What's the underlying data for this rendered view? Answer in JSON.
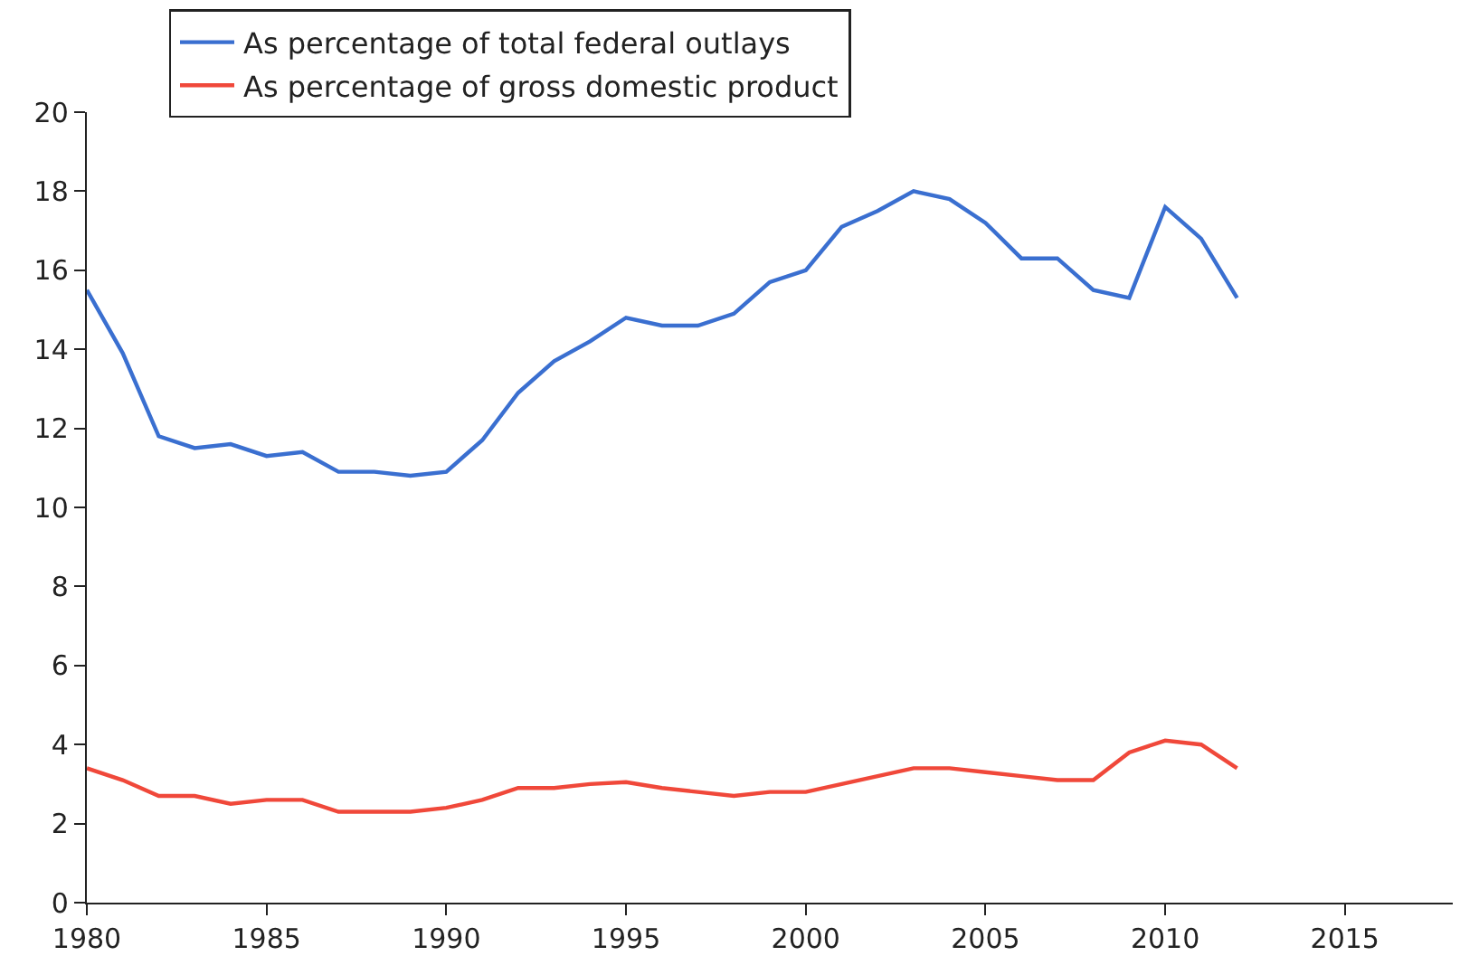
{
  "chart_data": {
    "type": "line",
    "x": [
      1980,
      1981,
      1982,
      1983,
      1984,
      1985,
      1986,
      1987,
      1988,
      1989,
      1990,
      1991,
      1992,
      1993,
      1994,
      1995,
      1996,
      1997,
      1998,
      1999,
      2000,
      2001,
      2002,
      2003,
      2004,
      2005,
      2006,
      2007,
      2008,
      2009,
      2010,
      2011,
      2012
    ],
    "series": [
      {
        "name": "As percentage of total federal outlays",
        "color": "#3a6fd0",
        "values": [
          15.5,
          13.9,
          11.8,
          11.5,
          11.6,
          11.3,
          11.4,
          10.9,
          10.9,
          10.8,
          10.9,
          11.7,
          12.9,
          13.7,
          14.2,
          14.8,
          14.6,
          14.6,
          14.9,
          15.7,
          16.0,
          17.1,
          17.5,
          18.0,
          17.8,
          17.2,
          16.3,
          16.3,
          15.5,
          15.3,
          17.6,
          16.8,
          15.3
        ]
      },
      {
        "name": "As percentage of gross domestic product",
        "color": "#f0483a",
        "values": [
          3.4,
          3.1,
          2.7,
          2.7,
          2.5,
          2.6,
          2.6,
          2.3,
          2.3,
          2.3,
          2.4,
          2.6,
          2.9,
          2.9,
          3.0,
          3.05,
          2.9,
          2.8,
          2.7,
          2.8,
          2.8,
          3.0,
          3.2,
          3.4,
          3.4,
          3.3,
          3.2,
          3.1,
          3.1,
          3.8,
          4.1,
          4.0,
          3.4
        ]
      }
    ],
    "xlim": [
      1980,
      2018
    ],
    "xticks": [
      1980,
      1985,
      1990,
      1995,
      2000,
      2005,
      2010,
      2015
    ],
    "ylim": [
      0,
      20
    ],
    "yticks": [
      0,
      2,
      4,
      6,
      8,
      10,
      12,
      14,
      16,
      18,
      20
    ],
    "legend": "top left",
    "marker": "none",
    "line_style": "solid"
  }
}
